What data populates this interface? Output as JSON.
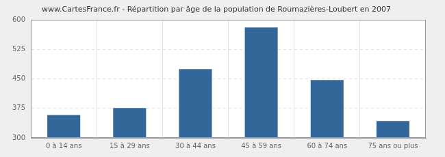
{
  "chart_data": {
    "type": "bar",
    "title": "www.CartesFrance.fr - Répartition par âge de la population de Roumazières-Loubert en 2007",
    "categories": [
      "0 à 14 ans",
      "15 à 29 ans",
      "30 à 44 ans",
      "45 à 59 ans",
      "60 à 74 ans",
      "75 ans ou plus"
    ],
    "values": [
      358,
      376,
      475,
      581,
      447,
      343
    ],
    "color": "#336699",
    "ylim": [
      300,
      600
    ],
    "yticks": [
      300,
      375,
      450,
      525,
      600
    ],
    "grid": true
  }
}
